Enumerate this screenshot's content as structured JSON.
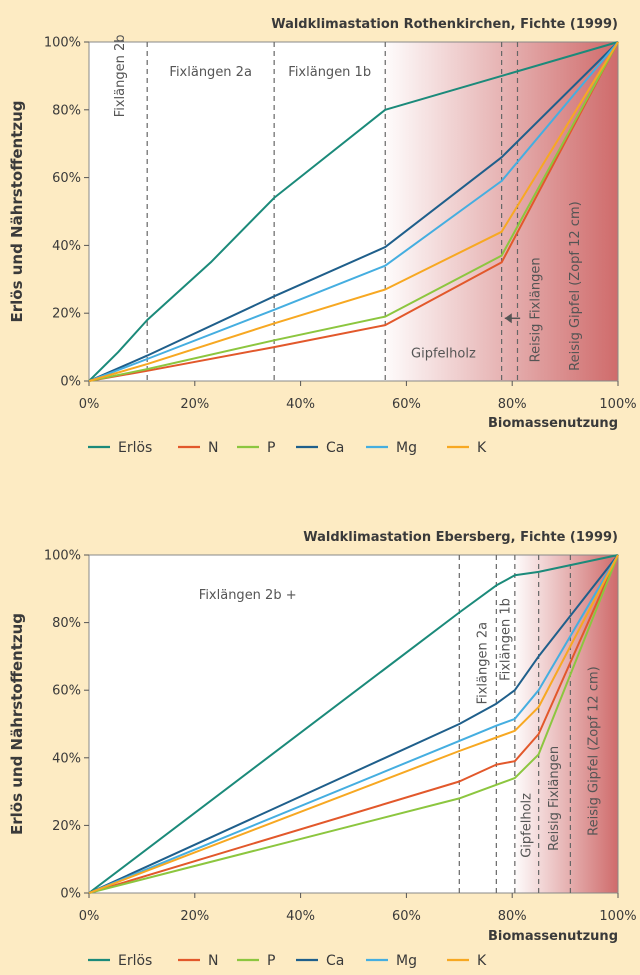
{
  "colors": {
    "Erlös": "#1b8a7a",
    "N": "#e2582b",
    "P": "#8cc63f",
    "Ca": "#1f5f8b",
    "Mg": "#45aee0",
    "K": "#f7a822",
    "gradient_end": "#cf6b6b",
    "background": "#fdebc3"
  },
  "chart_data": [
    {
      "type": "line",
      "title": "Waldklimastation Rothenkirchen, Fichte (1999)",
      "xlabel": "Biomassenutzung",
      "ylabel": "Erlös und Nährstoffentzug",
      "xlim": [
        0,
        100
      ],
      "ylim": [
        0,
        100
      ],
      "xticks": [
        "0%",
        "20%",
        "40%",
        "60%",
        "80%",
        "100%"
      ],
      "yticks": [
        "0%",
        "20%",
        "40%",
        "60%",
        "80%",
        "100%"
      ],
      "legend": "bottom",
      "shading_from": 55,
      "dividers": [
        11,
        35,
        56,
        78,
        81
      ],
      "annotations": [
        {
          "text": "Fixlängen 2b",
          "x": 6,
          "y": 90,
          "rotate": true
        },
        {
          "text": "Fixlängen 2a",
          "x": 23,
          "y": 91,
          "rotate": false
        },
        {
          "text": "Fixlängen 1b",
          "x": 45.5,
          "y": 91,
          "rotate": false
        },
        {
          "text": "Gipfelholz",
          "x": 67,
          "y": 8,
          "rotate": false
        },
        {
          "text": "Reisig Fixlängen",
          "x": 84.5,
          "y": 21,
          "rotate": true
        },
        {
          "text": "Reisig Gipfel (Zopf 12 cm)",
          "x": 92,
          "y": 28,
          "rotate": true
        }
      ],
      "series": [
        {
          "name": "Erlös",
          "x": [
            0,
            5.5,
            11,
            23,
            35,
            56,
            78,
            100
          ],
          "y": [
            0,
            8.5,
            18,
            35,
            54,
            80,
            90,
            100
          ]
        },
        {
          "name": "N",
          "x": [
            0,
            11,
            35,
            56,
            78,
            100
          ],
          "y": [
            0,
            3,
            10,
            16.5,
            35,
            100
          ]
        },
        {
          "name": "P",
          "x": [
            0,
            11,
            35,
            56,
            78,
            100
          ],
          "y": [
            0,
            3.5,
            12,
            19,
            37,
            100
          ]
        },
        {
          "name": "Ca",
          "x": [
            0,
            11,
            35,
            56,
            78,
            100
          ],
          "y": [
            0,
            7.5,
            25,
            39.5,
            66,
            100
          ]
        },
        {
          "name": "Mg",
          "x": [
            0,
            11,
            35,
            56,
            78,
            100
          ],
          "y": [
            0,
            6.5,
            21,
            34,
            59,
            100
          ]
        },
        {
          "name": "K",
          "x": [
            0,
            11,
            35,
            56,
            78,
            100
          ],
          "y": [
            0,
            5,
            17,
            27,
            44,
            100
          ]
        }
      ]
    },
    {
      "type": "line",
      "title": "Waldklimastation Ebersberg, Fichte (1999)",
      "xlabel": "Biomassenutzung",
      "ylabel": "Erlös und Nährstoffentzug",
      "xlim": [
        0,
        100
      ],
      "ylim": [
        0,
        100
      ],
      "xticks": [
        "0%",
        "20%",
        "40%",
        "60%",
        "80%",
        "100%"
      ],
      "yticks": [
        "0%",
        "20%",
        "40%",
        "60%",
        "80%",
        "100%"
      ],
      "legend": "bottom",
      "shading_from": 80,
      "dividers": [
        70,
        77,
        80.5,
        85,
        91
      ],
      "annotations": [
        {
          "text": "Fixlängen 2b +",
          "x": 30,
          "y": 88,
          "rotate": false
        },
        {
          "text": "Fixlängen 2a",
          "x": 74.5,
          "y": 68,
          "rotate": true
        },
        {
          "text": "Fixlängen 1b",
          "x": 78.8,
          "y": 75,
          "rotate": true
        },
        {
          "text": "Gipfelholz",
          "x": 82.8,
          "y": 20,
          "rotate": true
        },
        {
          "text": "Reisig Fixlängen",
          "x": 88,
          "y": 28,
          "rotate": true
        },
        {
          "text": "Reisig Gipfel (Zopf 12 cm)",
          "x": 95.5,
          "y": 42,
          "rotate": true
        }
      ],
      "series": [
        {
          "name": "Erlös",
          "x": [
            0,
            70,
            77,
            80.5,
            85,
            91,
            100
          ],
          "y": [
            0,
            83,
            91,
            94,
            95,
            97,
            100
          ]
        },
        {
          "name": "N",
          "x": [
            0,
            70,
            77,
            80.5,
            85,
            100
          ],
          "y": [
            0,
            33,
            38,
            39,
            47,
            100
          ]
        },
        {
          "name": "P",
          "x": [
            0,
            70,
            77,
            80.5,
            85,
            100
          ],
          "y": [
            0,
            28,
            32,
            34,
            41,
            100
          ]
        },
        {
          "name": "Ca",
          "x": [
            0,
            70,
            77,
            80.5,
            85,
            100
          ],
          "y": [
            0,
            50,
            56,
            60,
            70,
            100
          ]
        },
        {
          "name": "Mg",
          "x": [
            0,
            70,
            77,
            80.5,
            85,
            100
          ],
          "y": [
            0,
            45,
            49.5,
            51.5,
            60,
            100
          ]
        },
        {
          "name": "K",
          "x": [
            0,
            70,
            77,
            80.5,
            85,
            100
          ],
          "y": [
            0,
            42,
            46,
            48,
            55,
            100
          ]
        }
      ]
    }
  ]
}
